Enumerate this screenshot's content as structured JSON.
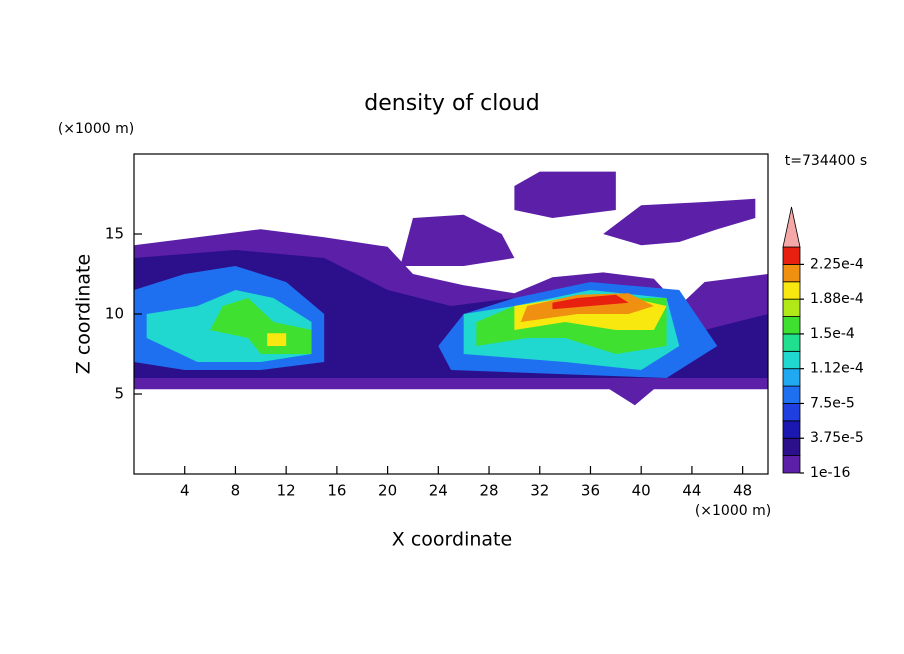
{
  "chart_data": {
    "type": "contour",
    "title": "density of cloud",
    "x_label": "X coordinate",
    "y_label": "Z coordinate",
    "x_unit": "(×1000 m)",
    "y_unit": "(×1000 m)",
    "time_label": "t=734400 s",
    "xlim": [
      0,
      50
    ],
    "ylim": [
      0,
      20
    ],
    "xticks": [
      4,
      8,
      12,
      16,
      20,
      24,
      28,
      32,
      36,
      40,
      44,
      48
    ],
    "yticks": [
      5,
      10,
      15
    ],
    "levels": [
      1e-16,
      1.875e-05,
      3.75e-05,
      5.625e-05,
      7.5e-05,
      9.375e-05,
      0.0001125,
      0.00013125,
      0.00015,
      0.00016875,
      0.0001875,
      0.00020625,
      0.000225,
      0.00024375
    ],
    "colors": [
      "#5b1fa8",
      "#2c0f8a",
      "#1a18b0",
      "#1f3fe0",
      "#1f70f0",
      "#20a8f0",
      "#20d8d0",
      "#20e090",
      "#40e030",
      "#b0e818",
      "#f8e810",
      "#f09010",
      "#e82010"
    ],
    "extend_color": "#f4a8a8",
    "colorbar_ticks": [
      {
        "value": 1e-16,
        "label": "1e-16"
      },
      {
        "value": 3.75e-05,
        "label": "3.75e-5"
      },
      {
        "value": 7.5e-05,
        "label": "7.5e-5"
      },
      {
        "value": 0.0001125,
        "label": "1.12e-4"
      },
      {
        "value": 0.00015,
        "label": "1.5e-4"
      },
      {
        "value": 0.0001875,
        "label": "1.88e-4"
      },
      {
        "value": 0.000225,
        "label": "2.25e-4"
      }
    ],
    "contours": [
      {
        "level": 1e-16,
        "points": [
          [
            0,
            5.3
          ],
          [
            37.5,
            5.3
          ],
          [
            39.5,
            4.3
          ],
          [
            41,
            5.3
          ],
          [
            50,
            5.3
          ],
          [
            50,
            12.5
          ],
          [
            45,
            12
          ],
          [
            43,
            10.5
          ],
          [
            41,
            12.2
          ],
          [
            37,
            12.6
          ],
          [
            33,
            12.3
          ],
          [
            30,
            11.3
          ],
          [
            26,
            11.8
          ],
          [
            22,
            12.5
          ],
          [
            20,
            14.2
          ],
          [
            15,
            14.8
          ],
          [
            10,
            15.3
          ],
          [
            5,
            14.8
          ],
          [
            0,
            14.3
          ]
        ]
      },
      {
        "level": 1e-16,
        "points": [
          [
            30,
            18
          ],
          [
            32,
            18.9
          ],
          [
            38,
            18.9
          ],
          [
            38,
            16.5
          ],
          [
            33,
            16
          ],
          [
            30,
            16.5
          ]
        ]
      },
      {
        "level": 1e-16,
        "points": [
          [
            37,
            15
          ],
          [
            40,
            16.8
          ],
          [
            45,
            17
          ],
          [
            49,
            17.2
          ],
          [
            49,
            16
          ],
          [
            46,
            15.3
          ],
          [
            43,
            14.5
          ],
          [
            40,
            14.3
          ]
        ]
      },
      {
        "level": 1e-16,
        "points": [
          [
            21,
            13
          ],
          [
            22,
            16
          ],
          [
            26,
            16.2
          ],
          [
            29,
            15
          ],
          [
            30,
            13.5
          ],
          [
            26,
            13
          ]
        ]
      },
      {
        "level": 1.875e-05,
        "points": [
          [
            0,
            6
          ],
          [
            50,
            6
          ],
          [
            50,
            10
          ],
          [
            45,
            9
          ],
          [
            42,
            11
          ],
          [
            30,
            11
          ],
          [
            25,
            10.5
          ],
          [
            20,
            11.5
          ],
          [
            15,
            13.5
          ],
          [
            8,
            14
          ],
          [
            0,
            13.5
          ]
        ]
      },
      {
        "level": 7.5e-05,
        "points": [
          [
            0,
            7
          ],
          [
            4,
            6.5
          ],
          [
            10,
            6.5
          ],
          [
            15,
            7
          ],
          [
            15,
            10
          ],
          [
            12,
            12
          ],
          [
            8,
            13
          ],
          [
            4,
            12.5
          ],
          [
            0,
            11.5
          ]
        ]
      },
      {
        "level": 7.5e-05,
        "points": [
          [
            25,
            6.5
          ],
          [
            42,
            6
          ],
          [
            46,
            8
          ],
          [
            43,
            11.5
          ],
          [
            36,
            12
          ],
          [
            30,
            11
          ],
          [
            26,
            10
          ],
          [
            24,
            8
          ]
        ]
      },
      {
        "level": 0.0001125,
        "points": [
          [
            1,
            8.5
          ],
          [
            5,
            7
          ],
          [
            10,
            7
          ],
          [
            14,
            7.5
          ],
          [
            14,
            9.5
          ],
          [
            11,
            11
          ],
          [
            8,
            11.5
          ],
          [
            5,
            10.5
          ],
          [
            1,
            10
          ]
        ]
      },
      {
        "level": 0.0001125,
        "points": [
          [
            26,
            7.5
          ],
          [
            34,
            7
          ],
          [
            40,
            6.5
          ],
          [
            43,
            8
          ],
          [
            42,
            11
          ],
          [
            36,
            11.5
          ],
          [
            30,
            10.5
          ],
          [
            26,
            10
          ]
        ]
      },
      {
        "level": 0.00015,
        "points": [
          [
            6,
            9
          ],
          [
            9,
            8.5
          ],
          [
            10,
            7.5
          ],
          [
            14,
            7.5
          ],
          [
            14,
            9
          ],
          [
            11,
            9.5
          ],
          [
            9,
            11
          ],
          [
            7,
            10.5
          ]
        ]
      },
      {
        "level": 0.00015,
        "points": [
          [
            27,
            8
          ],
          [
            31,
            8.5
          ],
          [
            34,
            8.5
          ],
          [
            38,
            7.5
          ],
          [
            42,
            8
          ],
          [
            42,
            11
          ],
          [
            36,
            11
          ],
          [
            30,
            10.5
          ],
          [
            27,
            9.5
          ]
        ]
      },
      {
        "level": 0.0001875,
        "points": [
          [
            30,
            9
          ],
          [
            34,
            9.5
          ],
          [
            38,
            9
          ],
          [
            41,
            9
          ],
          [
            42,
            10.5
          ],
          [
            38,
            11.2
          ],
          [
            34,
            11
          ],
          [
            30,
            10.5
          ]
        ]
      },
      {
        "level": 0.0001875,
        "points": [
          [
            10.5,
            8
          ],
          [
            12,
            8
          ],
          [
            12,
            8.8
          ],
          [
            10.5,
            8.8
          ]
        ]
      },
      {
        "level": 0.00020625,
        "points": [
          [
            30.5,
            9.5
          ],
          [
            35,
            10
          ],
          [
            39,
            10
          ],
          [
            41,
            10.5
          ],
          [
            39,
            11.3
          ],
          [
            35,
            11.2
          ],
          [
            31,
            10.5
          ]
        ]
      },
      {
        "level": 0.000225,
        "points": [
          [
            33,
            10.3
          ],
          [
            36,
            10.5
          ],
          [
            39,
            10.7
          ],
          [
            38,
            11.2
          ],
          [
            35,
            11
          ],
          [
            33,
            10.7
          ]
        ]
      }
    ]
  }
}
